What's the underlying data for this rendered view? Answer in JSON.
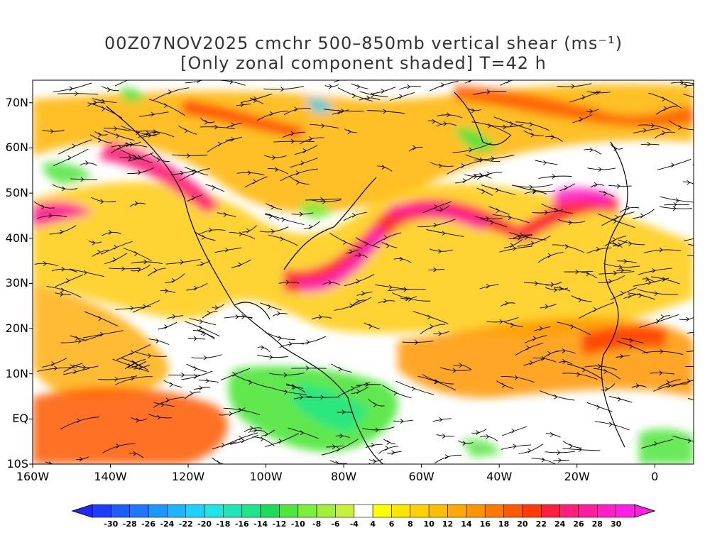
{
  "title": {
    "line1": "00Z07NOV2025 cmchr 500–850mb vertical shear (ms⁻¹)",
    "line2": "[Only zonal component shaded] T=42 h"
  },
  "map": {
    "lon_range": [
      -160,
      10
    ],
    "lat_range": [
      -10,
      75
    ],
    "lat_labels": [
      {
        "lat": 70,
        "text": "70N"
      },
      {
        "lat": 60,
        "text": "60N"
      },
      {
        "lat": 50,
        "text": "50N"
      },
      {
        "lat": 40,
        "text": "40N"
      },
      {
        "lat": 30,
        "text": "30N"
      },
      {
        "lat": 20,
        "text": "20N"
      },
      {
        "lat": 10,
        "text": "10N"
      },
      {
        "lat": 0,
        "text": "EQ"
      },
      {
        "lat": -10,
        "text": "10S"
      }
    ],
    "lon_labels": [
      {
        "lon": -160,
        "text": "160W"
      },
      {
        "lon": -140,
        "text": "140W"
      },
      {
        "lon": -120,
        "text": "120W"
      },
      {
        "lon": -100,
        "text": "100W"
      },
      {
        "lon": -80,
        "text": "80W"
      },
      {
        "lon": -60,
        "text": "60W"
      },
      {
        "lon": -40,
        "text": "40W"
      },
      {
        "lon": -20,
        "text": "20W"
      },
      {
        "lon": 0,
        "text": "0"
      }
    ]
  },
  "colorbar": {
    "labels": [
      "-30",
      "-28",
      "-26",
      "-24",
      "-22",
      "-20",
      "-18",
      "-16",
      "-14",
      "-12",
      "-10",
      "-8",
      "-6",
      "-4",
      "4",
      "6",
      "8",
      "10",
      "12",
      "14",
      "16",
      "18",
      "20",
      "22",
      "24",
      "26",
      "28",
      "30"
    ],
    "colors": [
      "#1e3cff",
      "#1e5cff",
      "#1e78ff",
      "#1e96ff",
      "#1eb4ff",
      "#1ed2ff",
      "#1ee6e6",
      "#1ee6b4",
      "#1ee68c",
      "#1edc5a",
      "#50e63c",
      "#78f03c",
      "#a0f03c",
      "#c8f03c",
      "#ffffff",
      "#ffff00",
      "#ffe600",
      "#ffd200",
      "#ffbe00",
      "#ffaa00",
      "#ff9600",
      "#ff7800",
      "#ff5a00",
      "#ff3c00",
      "#ff1e3c",
      "#ff1e78",
      "#ff1ea0",
      "#ff1ec8",
      "#ff1ee6"
    ],
    "low_color": "#1e28ff",
    "high_color": "#ff1ee6"
  }
}
